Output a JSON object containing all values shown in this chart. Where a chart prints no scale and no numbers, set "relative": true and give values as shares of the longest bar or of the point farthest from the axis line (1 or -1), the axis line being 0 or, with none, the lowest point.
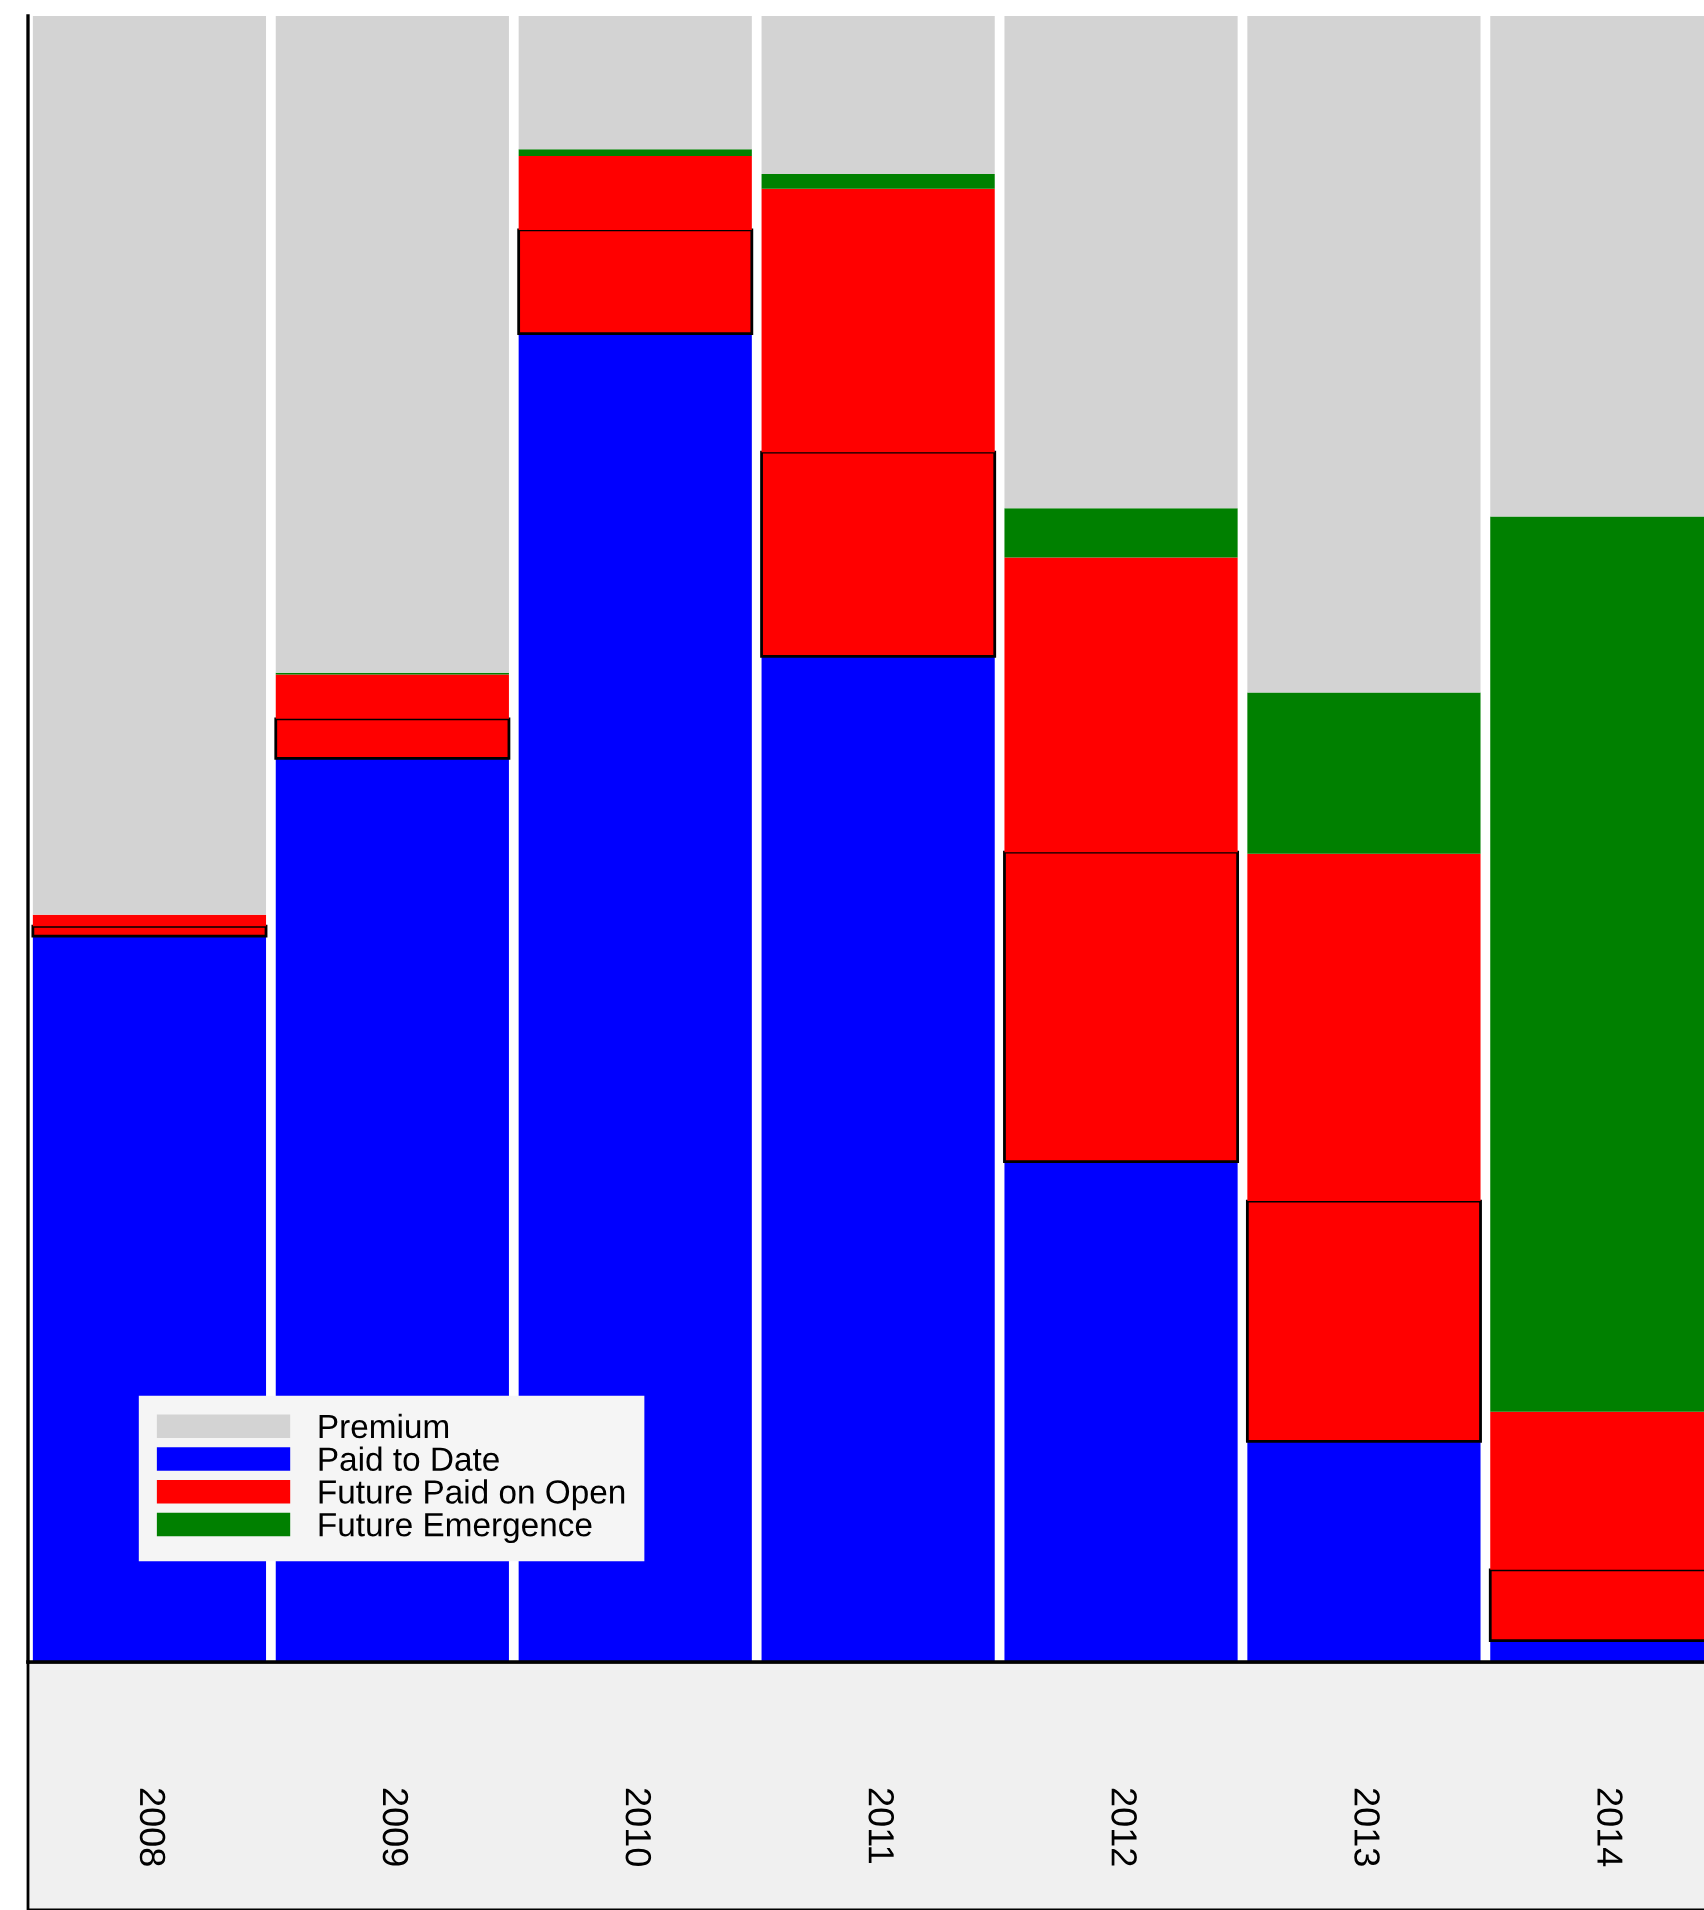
{
  "chart_data": {
    "type": "bar",
    "stacked": true,
    "relative": true,
    "legend": "bottom left",
    "grid": false,
    "categories": [
      "2008",
      "2009",
      "2010",
      "2011",
      "2012",
      "2013",
      "2014"
    ],
    "series": [
      {
        "name": "Paid to Date",
        "color": "#0000ff",
        "values": [
          0.441,
          0.549,
          0.807,
          0.611,
          0.304,
          0.134,
          0.013
        ]
      },
      {
        "color": "#ff0000",
        "values": [
          0.006,
          0.024,
          0.063,
          0.124,
          0.188,
          0.146,
          0.043
        ]
      },
      {
        "name": "Future Paid on Open",
        "color": "#ff0000",
        "values": [
          0.007,
          0.027,
          0.045,
          0.16,
          0.179,
          0.211,
          0.096
        ]
      },
      {
        "name": "Future Emergence",
        "color": "#008000",
        "values": [
          0,
          0.001,
          0.004,
          0.009,
          0.03,
          0.098,
          0.544
        ]
      },
      {
        "name": "Premium",
        "color": "#d3d3d3",
        "values": [
          0.546,
          0.399,
          0.081,
          0.096,
          0.299,
          0.411,
          0.304
        ]
      }
    ]
  }
}
